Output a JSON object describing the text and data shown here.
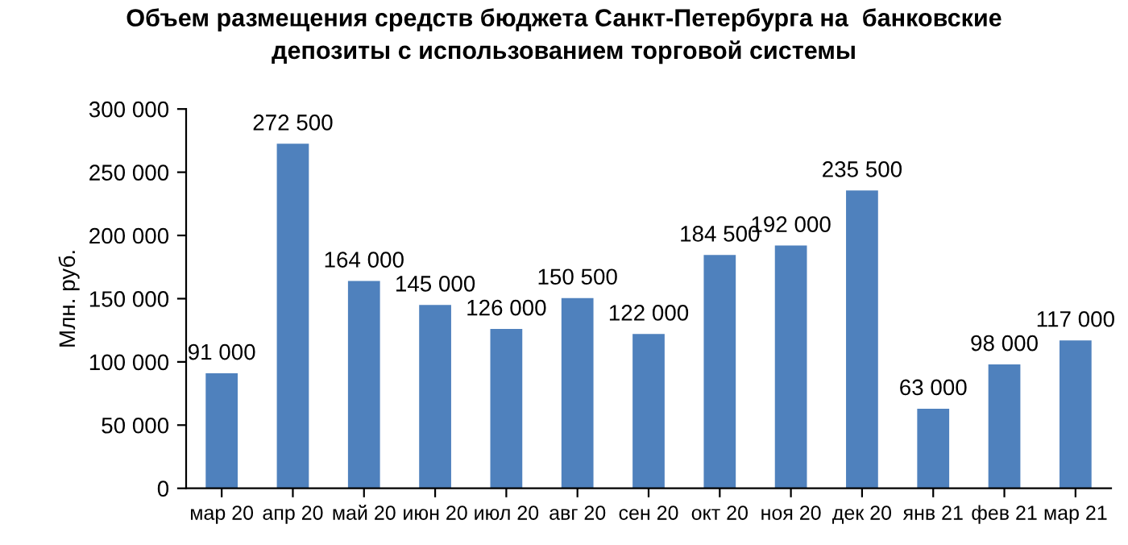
{
  "chart_data": {
    "type": "bar",
    "title": "Объем размещения средств бюджета Санкт-Петербурга на  банковские\nдепозиты с использованием торговой системы",
    "ylabel": "Млн. руб.",
    "categories": [
      "мар 20",
      "апр 20",
      "май 20",
      "июн 20",
      "июл 20",
      "авг 20",
      "сен 20",
      "окт 20",
      "ноя 20",
      "дек 20",
      "янв 21",
      "фев 21",
      "мар 21"
    ],
    "values": [
      91000,
      272500,
      164000,
      145000,
      126000,
      150500,
      122000,
      184500,
      192000,
      235500,
      63000,
      98000,
      117000
    ],
    "value_labels": [
      "91 000",
      "272 500",
      "164 000",
      "145 000",
      "126 000",
      "150 500",
      "122 000",
      "184 500",
      "192 000",
      "235 500",
      "63 000",
      "98 000",
      "117 000"
    ],
    "color": "#4f81bd",
    "ylim": [
      0,
      300000
    ],
    "yticks": [
      0,
      {
        "value": 50000,
        "label": "50 000"
      },
      {
        "value": 100000,
        "label": "100 000"
      },
      {
        "value": 150000,
        "label": "150 000"
      },
      {
        "value": 200000,
        "label": "200 000"
      },
      {
        "value": 250000,
        "label": "250 000"
      },
      {
        "value": 300000,
        "label": "300 000"
      }
    ],
    "grid": false,
    "legend": false
  }
}
